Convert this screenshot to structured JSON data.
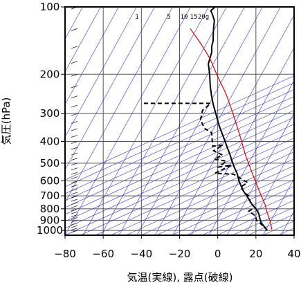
{
  "chart_data": {
    "type": "line",
    "title": "",
    "xlabel": "気温(実線), 露点(破線)",
    "ylabel": "気圧(hPa)",
    "xlim": [
      -80,
      40
    ],
    "ylim": [
      1050,
      100
    ],
    "y_scale": "log",
    "grid": true,
    "x_ticks": [
      -80,
      -60,
      -40,
      -20,
      0,
      20,
      40
    ],
    "x_tick_labels": [
      "−80",
      "−60",
      "−40",
      "−20",
      "0",
      "20",
      "40"
    ],
    "y_ticks": [
      100,
      200,
      300,
      400,
      500,
      600,
      700,
      800,
      900,
      1000
    ],
    "y_tick_labels": [
      "100",
      "200",
      "300",
      "400",
      "500",
      "600",
      "700",
      "800",
      "900",
      "1000"
    ],
    "mixing_ratio_labels": [
      {
        "label": "1",
        "value": 1
      },
      {
        "label": "5",
        "value": 5
      },
      {
        "label": "10",
        "value": 10
      },
      {
        "label": "15",
        "value": 15
      },
      {
        "label": "20g",
        "value": 20
      }
    ],
    "series": [
      {
        "role": "temperature",
        "style": "solid",
        "color": "#000000",
        "points": [
          [
            -74,
            100
          ],
          [
            -75,
            104
          ],
          [
            -73,
            108
          ],
          [
            -70,
            115
          ],
          [
            -68,
            124
          ],
          [
            -66,
            133
          ],
          [
            -64,
            142
          ],
          [
            -63,
            150
          ],
          [
            -61,
            160
          ],
          [
            -60,
            170
          ],
          [
            -59,
            180
          ],
          [
            -55,
            200
          ],
          [
            -51,
            225
          ],
          [
            -47,
            250
          ],
          [
            -43,
            275
          ],
          [
            -39,
            300
          ],
          [
            -34,
            335
          ],
          [
            -29,
            370
          ],
          [
            -25,
            400
          ],
          [
            -22,
            425
          ],
          [
            -18,
            460
          ],
          [
            -15,
            490
          ],
          [
            -12,
            520
          ],
          [
            -8,
            560
          ],
          [
            -5,
            600
          ],
          [
            -2,
            635
          ],
          [
            1,
            670
          ],
          [
            4,
            700
          ],
          [
            7,
            735
          ],
          [
            10,
            770
          ],
          [
            13,
            800
          ],
          [
            16,
            840
          ],
          [
            18,
            880
          ],
          [
            20,
            920
          ],
          [
            23,
            960
          ],
          [
            26,
            1000
          ]
        ]
      },
      {
        "role": "dewpoint",
        "style": "dashed",
        "color": "#000000",
        "points": [
          [
            -80,
            270
          ],
          [
            -45,
            270
          ],
          [
            -47,
            290
          ],
          [
            -45,
            320
          ],
          [
            -40,
            350
          ],
          [
            -35,
            365
          ],
          [
            -30,
            420
          ],
          [
            -25,
            415
          ],
          [
            -28,
            440
          ],
          [
            -22,
            460
          ],
          [
            -25,
            480
          ],
          [
            -18,
            490
          ],
          [
            -20,
            520
          ],
          [
            -14,
            510
          ],
          [
            -20,
            555
          ],
          [
            -10,
            560
          ],
          [
            -5,
            585
          ],
          [
            0,
            610
          ],
          [
            -2,
            640
          ],
          [
            2,
            680
          ],
          [
            5,
            700
          ],
          [
            8,
            750
          ],
          [
            12,
            790
          ],
          [
            10,
            820
          ],
          [
            15,
            860
          ],
          [
            17,
            900
          ],
          [
            22,
            950
          ],
          [
            26,
            1000
          ]
        ]
      },
      {
        "role": "reference",
        "style": "solid",
        "color": "#dd0000",
        "points": [
          [
            -80,
            125
          ],
          [
            -70,
            145
          ],
          [
            -60,
            170
          ],
          [
            -50,
            205
          ],
          [
            -40,
            245
          ],
          [
            -30,
            300
          ],
          [
            -20,
            370
          ],
          [
            -10,
            460
          ],
          [
            0,
            560
          ],
          [
            10,
            680
          ],
          [
            16,
            760
          ],
          [
            20,
            830
          ],
          [
            25,
            920
          ],
          [
            28,
            990
          ]
        ]
      }
    ]
  }
}
